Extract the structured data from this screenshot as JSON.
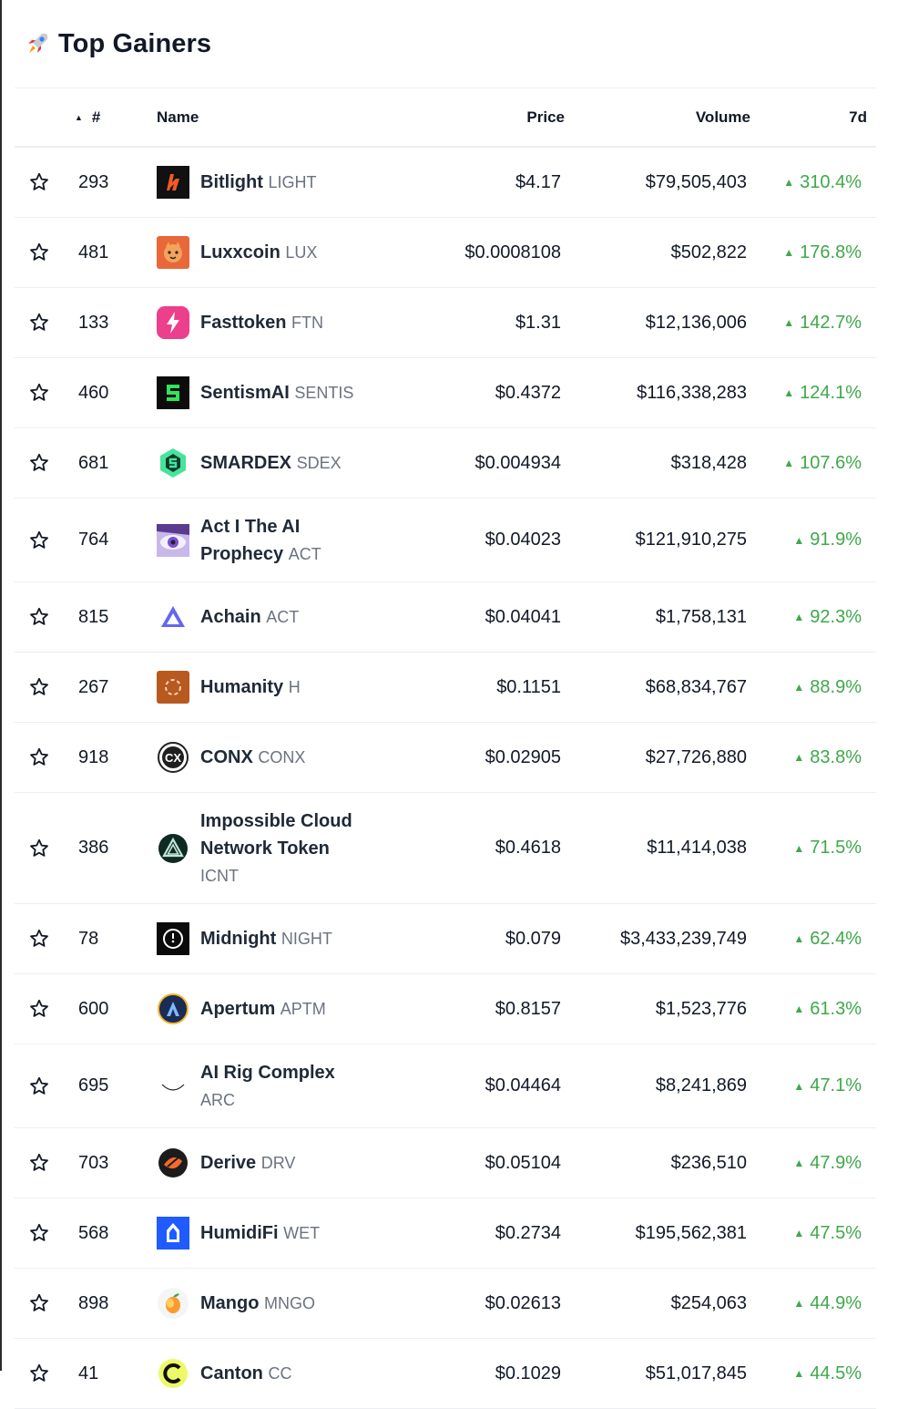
{
  "header": {
    "title": "Top Gainers",
    "rocket_icon": "rocket-icon"
  },
  "columns": {
    "rank": "#",
    "name": "Name",
    "price": "Price",
    "volume": "Volume",
    "change": "7d"
  },
  "colors": {
    "positive": "#3fa84a"
  },
  "rows": [
    {
      "rank": "293",
      "name": "Bitlight",
      "symbol": "LIGHT",
      "price": "$4.17",
      "volume": "$79,505,403",
      "change": "310.4%",
      "logo": "bitlight-logo"
    },
    {
      "rank": "481",
      "name": "Luxxcoin",
      "symbol": "LUX",
      "price": "$0.0008108",
      "volume": "$502,822",
      "change": "176.8%",
      "logo": "luxxcoin-logo"
    },
    {
      "rank": "133",
      "name": "Fasttoken",
      "symbol": "FTN",
      "price": "$1.31",
      "volume": "$12,136,006",
      "change": "142.7%",
      "logo": "fasttoken-logo"
    },
    {
      "rank": "460",
      "name": "SentismAI",
      "symbol": "SENTIS",
      "price": "$0.4372",
      "volume": "$116,338,283",
      "change": "124.1%",
      "logo": "sentismai-logo"
    },
    {
      "rank": "681",
      "name": "SMARDEX",
      "symbol": "SDEX",
      "price": "$0.004934",
      "volume": "$318,428",
      "change": "107.6%",
      "logo": "smardex-logo"
    },
    {
      "rank": "764",
      "name_line1": "Act I The AI",
      "name_line2": "Prophecy",
      "symbol": "ACT",
      "price": "$0.04023",
      "volume": "$121,910,275",
      "change": "91.9%",
      "logo": "act-i-logo"
    },
    {
      "rank": "815",
      "name": "Achain",
      "symbol": "ACT",
      "price": "$0.04041",
      "volume": "$1,758,131",
      "change": "92.3%",
      "logo": "achain-logo"
    },
    {
      "rank": "267",
      "name": "Humanity",
      "symbol": "H",
      "price": "$0.1151",
      "volume": "$68,834,767",
      "change": "88.9%",
      "logo": "humanity-logo"
    },
    {
      "rank": "918",
      "name": "CONX",
      "symbol": "CONX",
      "price": "$0.02905",
      "volume": "$27,726,880",
      "change": "83.8%",
      "logo": "conx-logo"
    },
    {
      "rank": "386",
      "name_line1": "Impossible Cloud",
      "name_line2": "Network Token",
      "symbol": "ICNT",
      "price": "$0.4618",
      "volume": "$11,414,038",
      "change": "71.5%",
      "logo": "icnt-logo"
    },
    {
      "rank": "78",
      "name": "Midnight",
      "symbol": "NIGHT",
      "price": "$0.079",
      "volume": "$3,433,239,749",
      "change": "62.4%",
      "logo": "midnight-logo"
    },
    {
      "rank": "600",
      "name": "Apertum",
      "symbol": "APTM",
      "price": "$0.8157",
      "volume": "$1,523,776",
      "change": "61.3%",
      "logo": "apertum-logo"
    },
    {
      "rank": "695",
      "name_line1": "AI Rig Complex",
      "symbol": "ARC",
      "price": "$0.04464",
      "volume": "$8,241,869",
      "change": "47.1%",
      "logo": "arc-logo"
    },
    {
      "rank": "703",
      "name": "Derive",
      "symbol": "DRV",
      "price": "$0.05104",
      "volume": "$236,510",
      "change": "47.9%",
      "logo": "derive-logo"
    },
    {
      "rank": "568",
      "name": "HumidiFi",
      "symbol": "WET",
      "price": "$0.2734",
      "volume": "$195,562,381",
      "change": "47.5%",
      "logo": "humidifi-logo"
    },
    {
      "rank": "898",
      "name": "Mango",
      "symbol": "MNGO",
      "price": "$0.02613",
      "volume": "$254,063",
      "change": "44.9%",
      "logo": "mango-logo"
    },
    {
      "rank": "41",
      "name": "Canton",
      "symbol": "CC",
      "price": "$0.1029",
      "volume": "$51,017,845",
      "change": "44.5%",
      "logo": "canton-logo"
    }
  ]
}
